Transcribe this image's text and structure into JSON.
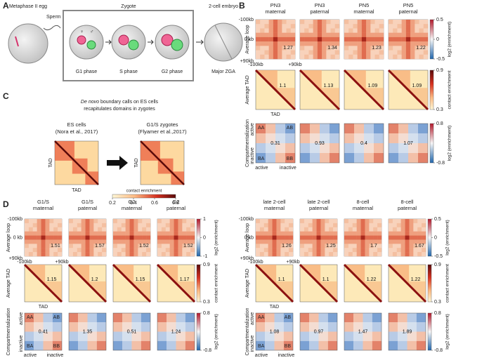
{
  "panel_a": {
    "letter": "A",
    "egg": "Metaphase II egg",
    "sperm": "Sperm",
    "zygote": "Zygote",
    "two_cell": "2-cell embryo",
    "female": "♀",
    "male": "♂",
    "phases": [
      "G1 phase",
      "S phase",
      "G2 phase"
    ],
    "zga": "Major ZGA"
  },
  "panel_c": {
    "letter": "C",
    "caption_italic": "De novo",
    "caption": "boundary calls on ES cells",
    "caption2": "recapitulates domains in zygotes",
    "maps": [
      {
        "title": [
          "ES cells",
          "(Nora et al., 2017)"
        ]
      },
      {
        "title": [
          "G1/S zygotes",
          "(Flyamer et al.,2017)"
        ]
      }
    ],
    "axis": "TAD",
    "colorbar_label": "contact enrichment",
    "colorbar_ticks": [
      0.2,
      0.4,
      0.6,
      0.8
    ]
  },
  "grids": [
    {
      "letter": "B",
      "columns": [
        [
          "PN3",
          "maternal"
        ],
        [
          "PN3",
          "paternal"
        ],
        [
          "PN5",
          "maternal"
        ],
        [
          "PN5",
          "paternal"
        ]
      ],
      "loop": {
        "row_label": "Average loop",
        "values": [
          1.27,
          1.34,
          1.23,
          1.22
        ],
        "axis": {
          "top": "-100kb",
          "mid": "0 kb",
          "bottom": "+90kb",
          "left": "-100kb",
          "right": "+90kb"
        },
        "colorbar": {
          "label": "log2 (enrichment)",
          "ticks": [
            0.5,
            0,
            -0.5
          ]
        }
      },
      "tad": {
        "row_label": "Average TAD",
        "values": [
          1.1,
          1.13,
          1.09,
          1.09
        ],
        "axis": "TAD",
        "colorbar": {
          "label": "contact enrichment",
          "ticks": [
            0.9,
            0.3
          ]
        }
      },
      "comp": {
        "row_label": "Compartmentalization",
        "values": [
          0.31,
          0.93,
          0.4,
          1.07
        ],
        "corners": [
          "AA",
          "AB",
          "BA",
          "BB"
        ],
        "active": "active",
        "inactive": "inactive",
        "colorbar": {
          "label": "log2 (enrichment)",
          "ticks": [
            0.8,
            -0.8
          ]
        }
      }
    },
    {
      "letter": "D",
      "columns": [
        [
          "G1/S",
          "maternal"
        ],
        [
          "G1/S",
          "paternal"
        ],
        [
          "G2",
          "maternal"
        ],
        [
          "G2",
          "paternal"
        ]
      ],
      "loop": {
        "row_label": "Average loop",
        "values": [
          1.51,
          1.57,
          1.52,
          1.52
        ],
        "axis": {
          "top": "-100kb",
          "mid": "0 kb",
          "bottom": "+90kb",
          "left": "-100kb",
          "right": "+90kb"
        },
        "colorbar": {
          "label": "log2 (enrichment)",
          "ticks": [
            1,
            0,
            -1
          ]
        }
      },
      "tad": {
        "row_label": "Average TAD",
        "values": [
          1.15,
          1.2,
          1.15,
          1.17
        ],
        "axis": "TAD",
        "colorbar": {
          "label": "contact enrichment",
          "ticks": [
            0.9,
            0.3
          ]
        }
      },
      "comp": {
        "row_label": "Compartmentalization",
        "values": [
          0.41,
          1.35,
          0.51,
          1.24
        ],
        "corners": [
          "AA",
          "AB",
          "BA",
          "BB"
        ],
        "active": "active",
        "inactive": "inactive",
        "colorbar": {
          "label": "log2 (enrichment)",
          "ticks": [
            0.8,
            -0.8
          ]
        }
      }
    },
    {
      "columns": [
        [
          "late 2-cell",
          "maternal"
        ],
        [
          "late 2-cell",
          "paternal"
        ],
        [
          "8-cell",
          "maternal"
        ],
        [
          "8-cell",
          "paternal"
        ]
      ],
      "loop": {
        "row_label": "Average loop",
        "values": [
          1.26,
          1.25,
          1.7,
          1.67
        ],
        "axis": {
          "top": "-100kb",
          "mid": "0 kb",
          "bottom": "+90kb",
          "left": "-100kb",
          "right": "+90kb"
        },
        "colorbar": {
          "label": "log2 (enrichment)",
          "ticks": [
            0.5,
            0,
            -0.5
          ]
        }
      },
      "tad": {
        "row_label": "Average TAD",
        "values": [
          1.1,
          1.1,
          1.22,
          1.22
        ],
        "axis": "TAD",
        "colorbar": {
          "label": "contact enrichment",
          "ticks": [
            0.9,
            0.3
          ]
        }
      },
      "comp": {
        "row_label": "Compartmentalization",
        "values": [
          1.08,
          0.97,
          1.47,
          1.89
        ],
        "corners": [
          "AA",
          "AB",
          "BA",
          "BB"
        ],
        "active": "active",
        "inactive": "inactive",
        "colorbar": {
          "label": "log2 (enrichment)",
          "ticks": [
            0.8,
            -0.8
          ]
        }
      }
    }
  ]
}
